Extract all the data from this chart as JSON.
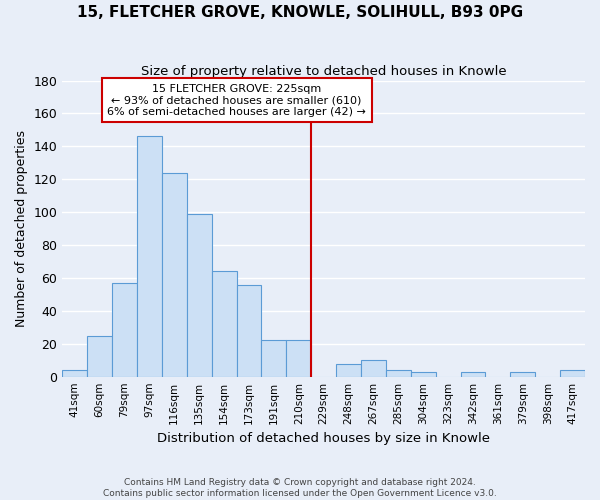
{
  "title": "15, FLETCHER GROVE, KNOWLE, SOLIHULL, B93 0PG",
  "subtitle": "Size of property relative to detached houses in Knowle",
  "xlabel": "Distribution of detached houses by size in Knowle",
  "ylabel": "Number of detached properties",
  "footer_line1": "Contains HM Land Registry data © Crown copyright and database right 2024.",
  "footer_line2": "Contains public sector information licensed under the Open Government Licence v3.0.",
  "bin_labels": [
    "41sqm",
    "60sqm",
    "79sqm",
    "97sqm",
    "116sqm",
    "135sqm",
    "154sqm",
    "173sqm",
    "191sqm",
    "210sqm",
    "229sqm",
    "248sqm",
    "267sqm",
    "285sqm",
    "304sqm",
    "323sqm",
    "342sqm",
    "361sqm",
    "379sqm",
    "398sqm",
    "417sqm"
  ],
  "bar_values": [
    4,
    25,
    57,
    146,
    124,
    99,
    64,
    56,
    22,
    22,
    0,
    8,
    10,
    4,
    3,
    0,
    3,
    0,
    3,
    0,
    4
  ],
  "bar_color": "#cce0f5",
  "bar_edge_color": "#5b9bd5",
  "property_line_x": 10.0,
  "annotation_title": "15 FLETCHER GROVE: 225sqm",
  "annotation_line1": "← 93% of detached houses are smaller (610)",
  "annotation_line2": "6% of semi-detached houses are larger (42) →",
  "ylim": [
    0,
    180
  ],
  "yticks": [
    0,
    20,
    40,
    60,
    80,
    100,
    120,
    140,
    160,
    180
  ],
  "background_color": "#e8eef8",
  "grid_color": "#ffffff",
  "annotation_box_color": "#ffffff",
  "annotation_box_edge": "#cc0000",
  "property_line_color": "#cc0000",
  "title_fontsize": 11,
  "subtitle_fontsize": 9.5,
  "ylabel_fontsize": 9,
  "xlabel_fontsize": 9.5
}
